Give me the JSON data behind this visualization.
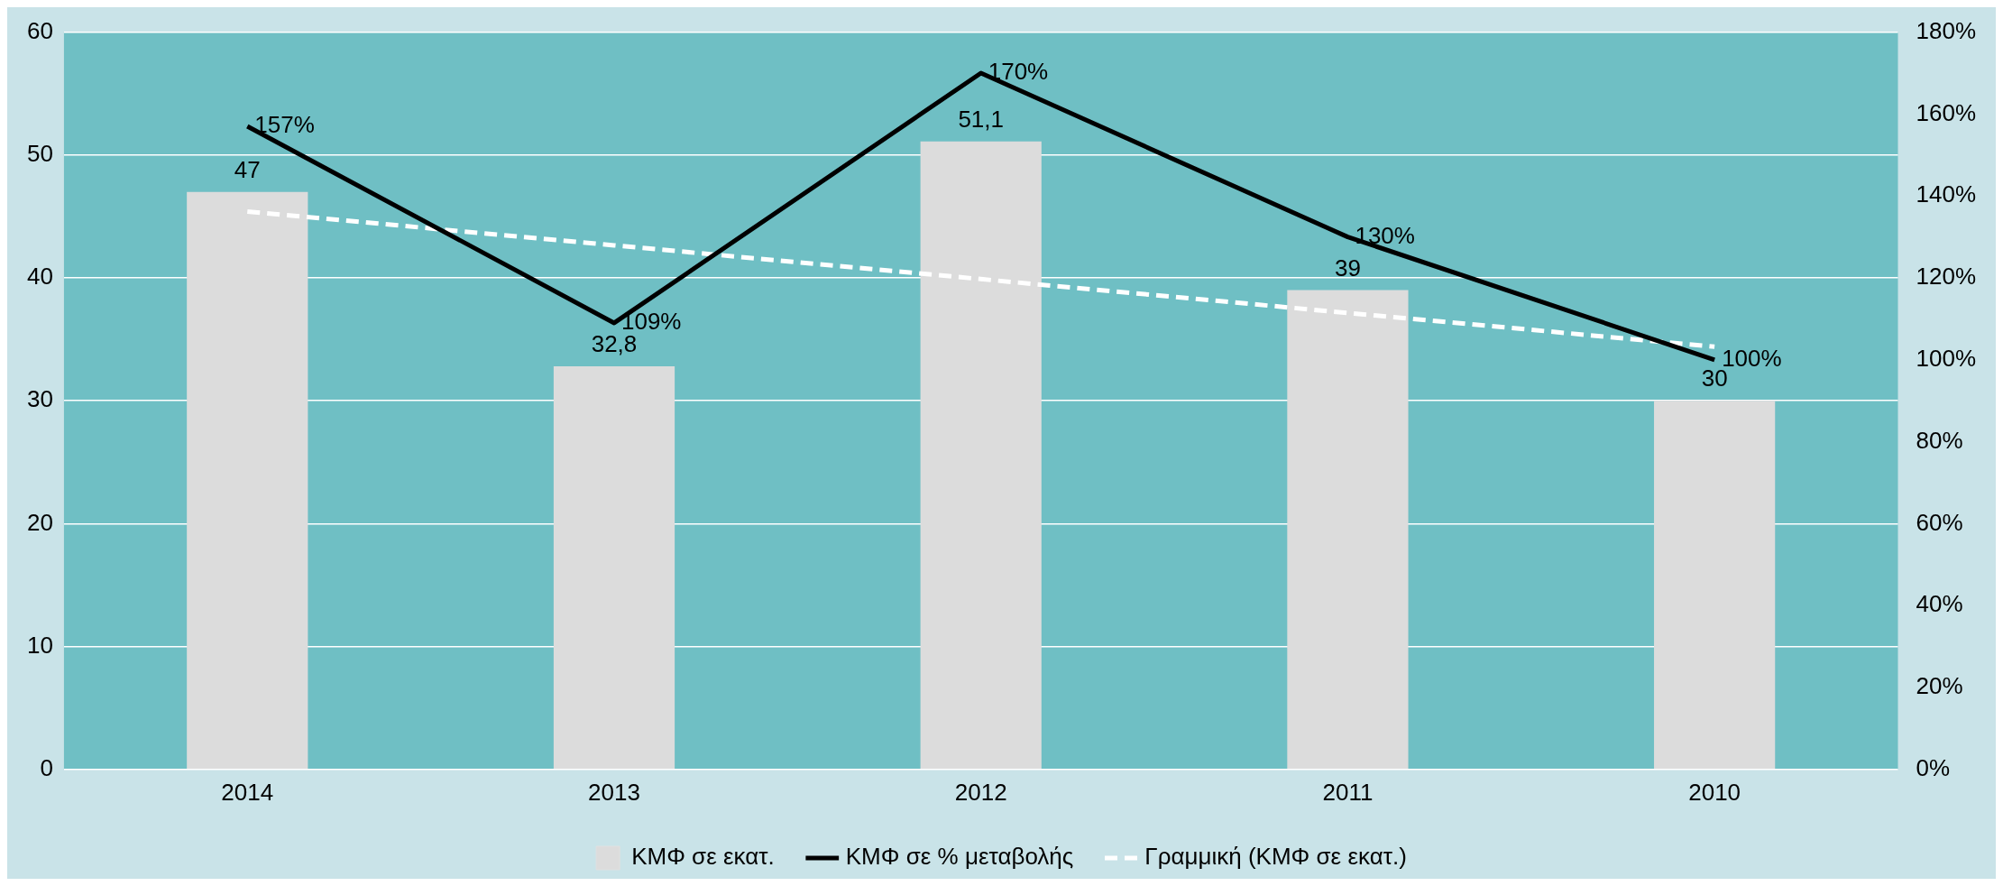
{
  "chart_data": {
    "type": "bar",
    "categories": [
      "2014",
      "2013",
      "2012",
      "2011",
      "2010"
    ],
    "series": [
      {
        "name": "ΚΜΦ σε εκατ.",
        "color": "#dcdcdc",
        "values": [
          47,
          32.8,
          51.1,
          39,
          30
        ],
        "value_labels": [
          "47",
          "32,8",
          "51,1",
          "39",
          "30"
        ]
      },
      {
        "name": "ΚΜΦ σε % μεταβολής",
        "type": "line",
        "axis": "y2",
        "color": "#000000",
        "line_style": "solid",
        "values": [
          157,
          109,
          170,
          130,
          100
        ],
        "value_labels": [
          "157%",
          "109%",
          "170%",
          "130%",
          "100%"
        ]
      },
      {
        "name": "Γραμμική (ΚΜΦ σε εκατ.)",
        "type": "line",
        "color": "#ffffff",
        "line_style": "dashed",
        "values": [
          45.4,
          42.65,
          39.9,
          37.15,
          34.4
        ]
      }
    ],
    "ylim": [
      0,
      60
    ],
    "yticks": [
      0,
      10,
      20,
      30,
      40,
      50,
      60
    ],
    "y2lim": [
      0,
      180
    ],
    "y2ticks": [
      {
        "value": 0,
        "label": "0%"
      },
      {
        "value": 20,
        "label": "20%"
      },
      {
        "value": 40,
        "label": "40%"
      },
      {
        "value": 60,
        "label": "60%"
      },
      {
        "value": 80,
        "label": "80%"
      },
      {
        "value": 100,
        "label": "100%"
      },
      {
        "value": 120,
        "label": "120%"
      },
      {
        "value": 140,
        "label": "140%"
      },
      {
        "value": 160,
        "label": "160%"
      },
      {
        "value": 180,
        "label": "180%"
      }
    ],
    "grid": "y",
    "legend": "bottom",
    "marker": "none"
  }
}
